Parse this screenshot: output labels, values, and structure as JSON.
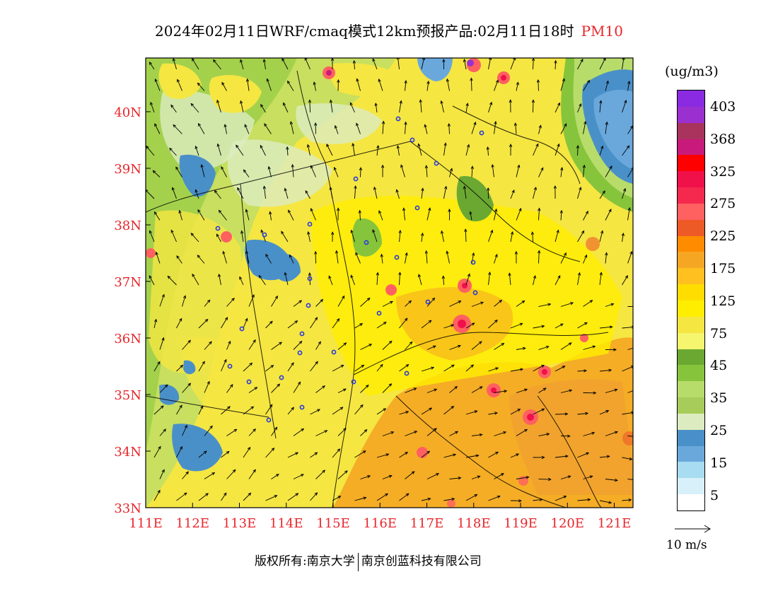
{
  "title": {
    "main": "2024年02月11日WRF/cmaq模式12km预报产品:02月11日18时",
    "pollutant": "PM10"
  },
  "map": {
    "lon_range": [
      111,
      121.4
    ],
    "lat_range": [
      33,
      40.95
    ],
    "x_ticks": [
      "111E",
      "112E",
      "113E",
      "114E",
      "115E",
      "116E",
      "117E",
      "118E",
      "119E",
      "120E",
      "121E"
    ],
    "y_ticks": [
      "33N",
      "34N",
      "35N",
      "36N",
      "37N",
      "38N",
      "39N",
      "40N"
    ],
    "tick_color": "#e8252b"
  },
  "legend": {
    "unit": "(ug/m3)",
    "labels": [
      "403",
      "368",
      "325",
      "275",
      "225",
      "175",
      "125",
      "75",
      "45",
      "35",
      "25",
      "15",
      "5"
    ],
    "colors_top_to_bottom": [
      "#8a2be2",
      "#9b30d0",
      "#a8345e",
      "#c81a7a",
      "#ff0000",
      "#f0104a",
      "#f5294e",
      "#ff6060",
      "#ee5a26",
      "#ff8c00",
      "#f5a623",
      "#ffc020",
      "#ffdd00",
      "#ffee00",
      "#f5e642",
      "#f5f56e",
      "#6aa832",
      "#86c43c",
      "#b8dc6a",
      "#a8cc5a",
      "#dcecc0",
      "#4a90c8",
      "#6aa8dc",
      "#a8dcf0",
      "#d8f0fa",
      "#ffffff"
    ]
  },
  "vector_ref": {
    "label": "10 m/s"
  },
  "footer": {
    "left": "版权所有:南京大学",
    "right": "南京创蓝科技有限公司"
  }
}
